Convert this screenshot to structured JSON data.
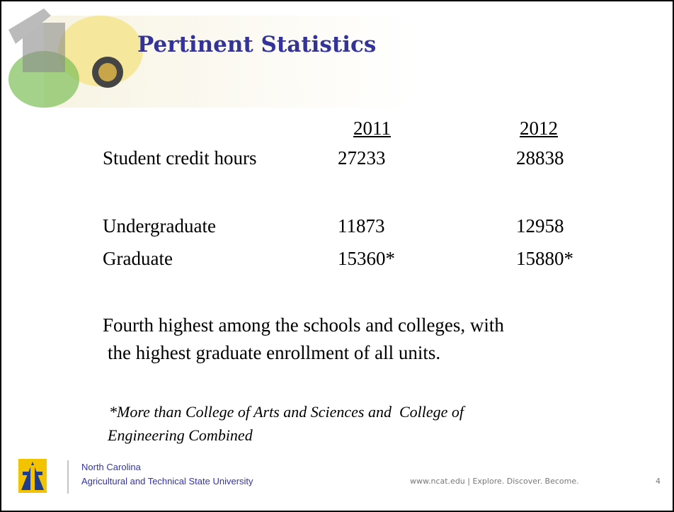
{
  "header": {
    "title": "Pertinent Statistics"
  },
  "table": {
    "columns": [
      "2011",
      "2012"
    ],
    "rows": [
      [
        "Student credit hours",
        27233,
        28838
      ],
      [
        "Undergraduate",
        11873,
        12958
      ],
      [
        "Graduate",
        "15360*",
        "15880*"
      ]
    ]
  },
  "body": {
    "paragraph": [
      "Fourth highest among the schools and colleges, with",
      "the highest graduate enrollment of all units."
    ],
    "footnote": [
      "*More than College of Arts and Sciences and  College of",
      "Engineering Combined"
    ]
  },
  "footer": {
    "institution": [
      "North Carolina",
      "Agricultural and Technical State University"
    ],
    "tagline": "www.ncat.edu | Explore. Discover. Become.",
    "page_number": 4
  }
}
